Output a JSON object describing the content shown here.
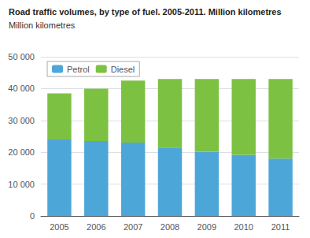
{
  "chart_data": {
    "type": "bar",
    "title": "Road traffic volumes, by type of fuel. 2005-2011. Million kilometres",
    "ylabel": "Million kilometres",
    "categories": [
      "2005",
      "2006",
      "2007",
      "2008",
      "2009",
      "2010",
      "2011"
    ],
    "series": [
      {
        "name": "Petrol",
        "color": "#4DA6D8",
        "values": [
          24000,
          23500,
          23000,
          21500,
          20200,
          19200,
          18000
        ]
      },
      {
        "name": "Diesel",
        "color": "#7DC142",
        "values": [
          14500,
          16500,
          19500,
          21500,
          22800,
          23800,
          25000
        ]
      }
    ],
    "stacked": true,
    "ylim": [
      0,
      50000
    ],
    "yticks": [
      0,
      {
        "value": 10000,
        "label": "10 000"
      },
      {
        "value": 20000,
        "label": "20 000"
      },
      {
        "value": 30000,
        "label": "30 000"
      },
      {
        "value": 40000,
        "label": "40 000"
      },
      {
        "value": 50000,
        "label": "50 000"
      }
    ],
    "grid": true,
    "legend": "upper left"
  }
}
